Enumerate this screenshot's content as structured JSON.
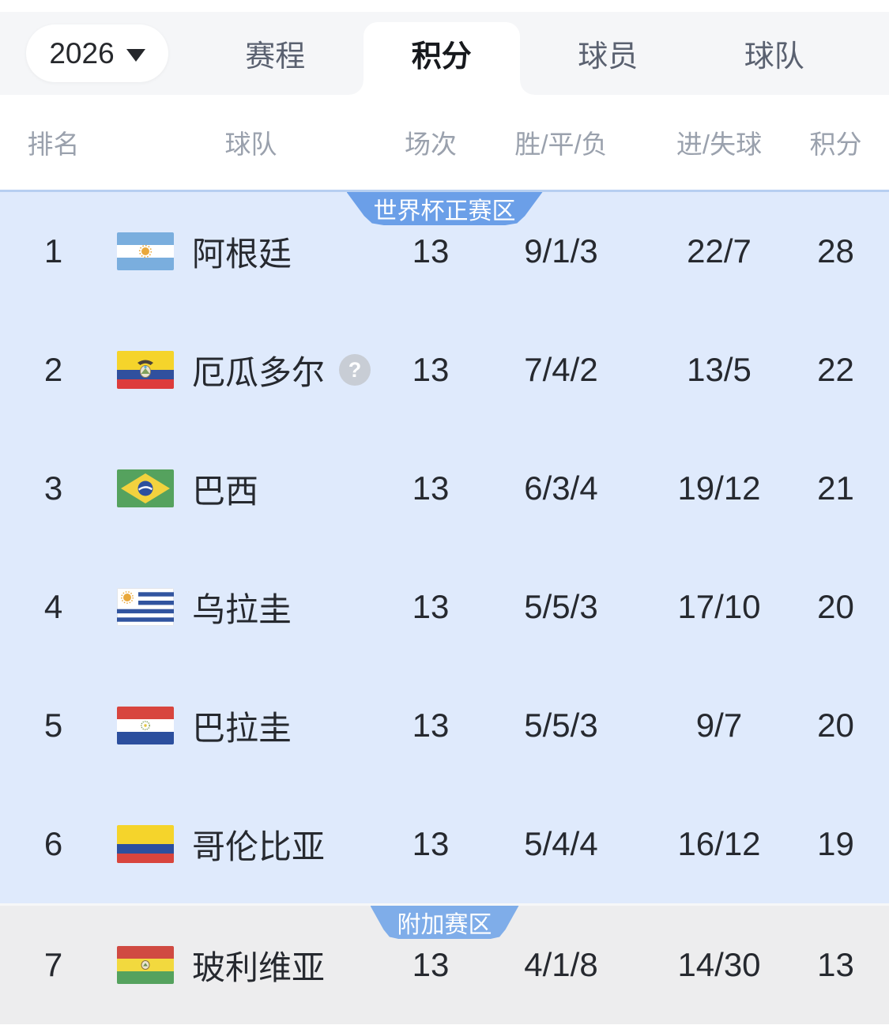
{
  "toolbar": {
    "season": "2026",
    "tabs": [
      {
        "label": "赛程",
        "active": false
      },
      {
        "label": "积分",
        "active": true
      },
      {
        "label": "球员",
        "active": false
      },
      {
        "label": "球队",
        "active": false
      }
    ]
  },
  "table": {
    "headers": {
      "rank": "排名",
      "team": "球队",
      "played": "场次",
      "wdl": "胜/平/负",
      "goals": "进/失球",
      "points": "积分"
    },
    "sections": [
      {
        "badge": "世界杯正赛区",
        "badge_color": "#6b9fe8",
        "background": "#dfeafc",
        "rows": [
          {
            "rank": "1",
            "team": "阿根廷",
            "flag": "argentina",
            "played": "13",
            "wdl": "9/1/3",
            "goals": "22/7",
            "points": "28",
            "help": false
          },
          {
            "rank": "2",
            "team": "厄瓜多尔",
            "flag": "ecuador",
            "played": "13",
            "wdl": "7/4/2",
            "goals": "13/5",
            "points": "22",
            "help": true
          },
          {
            "rank": "3",
            "team": "巴西",
            "flag": "brazil",
            "played": "13",
            "wdl": "6/3/4",
            "goals": "19/12",
            "points": "21",
            "help": false
          },
          {
            "rank": "4",
            "team": "乌拉圭",
            "flag": "uruguay",
            "played": "13",
            "wdl": "5/5/3",
            "goals": "17/10",
            "points": "20",
            "help": false
          },
          {
            "rank": "5",
            "team": "巴拉圭",
            "flag": "paraguay",
            "played": "13",
            "wdl": "5/5/3",
            "goals": "9/7",
            "points": "20",
            "help": false
          },
          {
            "rank": "6",
            "team": "哥伦比亚",
            "flag": "colombia",
            "played": "13",
            "wdl": "5/4/4",
            "goals": "16/12",
            "points": "19",
            "help": false
          }
        ]
      },
      {
        "badge": "附加赛区",
        "badge_color": "#7fade9",
        "background": "#ededee",
        "rows": [
          {
            "rank": "7",
            "team": "玻利维亚",
            "flag": "bolivia",
            "played": "13",
            "wdl": "4/1/8",
            "goals": "14/30",
            "points": "13",
            "help": false
          }
        ]
      }
    ]
  },
  "icons": {
    "help_glyph": "?"
  }
}
